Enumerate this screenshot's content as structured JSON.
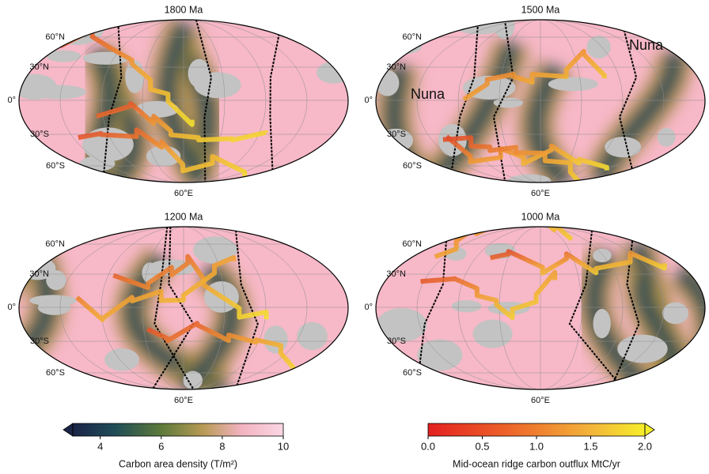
{
  "panels": [
    {
      "title": "1800 Ma",
      "lat_labels": [
        "60°N",
        "30°N",
        "0°",
        "30°S",
        "60°S"
      ],
      "lon_label": "60°E"
    },
    {
      "title": "1500 Ma",
      "lat_labels": [
        "60°N",
        "30°N",
        "0°",
        "30°S",
        "60°S"
      ],
      "lon_label": "60°E",
      "annotations": [
        "Nuna",
        "Nuna"
      ]
    },
    {
      "title": "1200 Ma",
      "lat_labels": [
        "60°N",
        "30°N",
        "0°",
        "30°S",
        "60°S"
      ],
      "lon_label": "60°E"
    },
    {
      "title": "1000 Ma",
      "lat_labels": [
        "60°N",
        "30°N",
        "0°",
        "30°S",
        "60°S"
      ],
      "lon_label": "60°E"
    }
  ],
  "colorbars": [
    {
      "label": "Carbon area density (T/m²)",
      "range": [
        3.1,
        10
      ],
      "ticks": [
        4,
        6,
        8,
        10
      ]
    },
    {
      "label": "Mid-ocean ridge carbon outflux MtC/yr",
      "range": [
        0,
        2
      ],
      "ticks": [
        {
          "value": 0,
          "label": "0.0"
        },
        {
          "value": 0.5,
          "label": "0.5"
        },
        {
          "value": 1,
          "label": "1.0"
        },
        {
          "value": 1.5,
          "label": "1.5"
        },
        {
          "value": 2,
          "label": "2.0"
        }
      ]
    }
  ]
}
